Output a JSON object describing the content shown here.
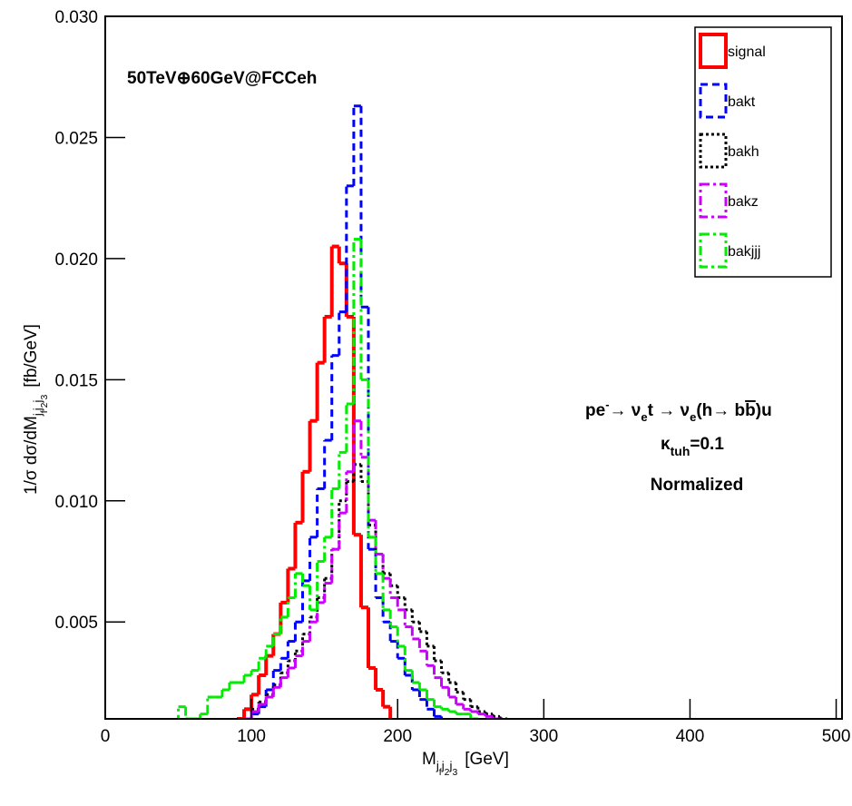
{
  "chart_data": {
    "type": "histogram",
    "annotations": {
      "beam": "50TeV⊕60GeV@FCCeh",
      "process": [
        "pe",
        "-",
        "→ ν",
        "e",
        "t → ν",
        "e",
        "(h→ b",
        "b",
        ")u"
      ],
      "coupling": [
        "κ",
        "tuh",
        "=0.1"
      ],
      "norm": "Normalized"
    },
    "x_label": [
      "M",
      "j",
      "f",
      "j",
      "2",
      "j",
      "3",
      "[GeV]"
    ],
    "y_label": [
      "1/σ dσ/dM",
      "j",
      "f",
      "j",
      "2",
      "j",
      "3",
      "[fb/GeV]"
    ],
    "bins": [
      0,
      50,
      55,
      60,
      65,
      70,
      75,
      80,
      85,
      90,
      95,
      100,
      105,
      110,
      115,
      120,
      125,
      130,
      135,
      140,
      145,
      150,
      155,
      160,
      165,
      170,
      175,
      180,
      185,
      190,
      195,
      200,
      205,
      210,
      215,
      220,
      225,
      230,
      235,
      240,
      245,
      250,
      255,
      260,
      265,
      270,
      275,
      280,
      285,
      290,
      295,
      300,
      500
    ],
    "series": [
      {
        "name": "signal",
        "color": "#ff0000",
        "line_style": "solid",
        "line_width": 4,
        "values": [
          0,
          0,
          0,
          0,
          0,
          0,
          0,
          0,
          0.0004,
          0.001,
          0.0014,
          0.002,
          0.0028,
          0.0036,
          0.0045,
          0.0058,
          0.0072,
          0.0091,
          0.0112,
          0.0133,
          0.0157,
          0.0176,
          0.0205,
          0.0198,
          0.0176,
          0.0086,
          0.0056,
          0.0031,
          0.0022,
          0.0015,
          0.0008,
          0,
          0,
          0,
          0,
          0,
          0,
          0,
          0,
          0,
          0,
          0,
          0,
          0,
          0,
          0,
          0,
          0,
          0,
          0,
          0,
          0
        ]
      },
      {
        "name": "bakt",
        "color": "#0000ff",
        "line_style": "dashed",
        "line_width": 3,
        "values": [
          0,
          0,
          0,
          0,
          0,
          0,
          0,
          0,
          0,
          0.0004,
          0.0008,
          0.0012,
          0.0015,
          0.0022,
          0.003,
          0.0035,
          0.0042,
          0.005,
          0.0067,
          0.0085,
          0.0105,
          0.0125,
          0.016,
          0.0178,
          0.023,
          0.0263,
          0.018,
          0.008,
          0.006,
          0.005,
          0.0042,
          0.0035,
          0.0028,
          0.0022,
          0.0018,
          0.0014,
          0.0011,
          0.0008,
          0.0006,
          0.0005,
          0.0004,
          0,
          0,
          0,
          0,
          0,
          0,
          0,
          0,
          0,
          0,
          0
        ]
      },
      {
        "name": "bakh",
        "color": "#000000",
        "line_style": "dotted",
        "line_width": 3,
        "values": [
          0,
          0,
          0,
          0,
          0,
          0,
          0,
          0,
          0,
          0.0005,
          0.001,
          0.0014,
          0.0017,
          0.002,
          0.0024,
          0.0029,
          0.0034,
          0.0038,
          0.0045,
          0.0052,
          0.006,
          0.0068,
          0.008,
          0.01,
          0.0108,
          0.0115,
          0.0108,
          0.009,
          0.0078,
          0.007,
          0.0065,
          0.006,
          0.0055,
          0.005,
          0.0046,
          0.004,
          0.0034,
          0.0029,
          0.0025,
          0.0021,
          0.0018,
          0.0015,
          0.0013,
          0.0012,
          0.0011,
          0.001,
          0.0009,
          0.0008,
          0.0006,
          0.0005,
          0.0004,
          0
        ]
      },
      {
        "name": "bakz",
        "color": "#cc00ff",
        "line_style": "dashdot",
        "line_width": 3,
        "values": [
          0,
          0,
          0,
          0,
          0,
          0,
          0,
          0,
          0,
          0.0005,
          0.001,
          0.0013,
          0.0016,
          0.0019,
          0.0023,
          0.0027,
          0.0031,
          0.0036,
          0.0042,
          0.005,
          0.0058,
          0.0066,
          0.008,
          0.0095,
          0.0112,
          0.0133,
          0.0118,
          0.0092,
          0.0078,
          0.0068,
          0.006,
          0.0055,
          0.0048,
          0.0043,
          0.0038,
          0.0032,
          0.0027,
          0.0023,
          0.0019,
          0.0016,
          0.0014,
          0.0013,
          0.0012,
          0.0011,
          0.001,
          0.0009,
          0.0008,
          0.0007,
          0.0006,
          0.0005,
          0.0004,
          0
        ]
      },
      {
        "name": "bakjjj",
        "color": "#00ee00",
        "line_style": "dashdot",
        "line_width": 3,
        "values": [
          0,
          0.0015,
          0.001,
          0.001,
          0.0012,
          0.0019,
          0.0019,
          0.0022,
          0.0025,
          0.0025,
          0.0028,
          0.003,
          0.0035,
          0.004,
          0.0045,
          0.0052,
          0.006,
          0.007,
          0.0065,
          0.0055,
          0.0075,
          0.0085,
          0.0105,
          0.012,
          0.014,
          0.0208,
          0.015,
          0.0085,
          0.007,
          0.0055,
          0.0048,
          0.004,
          0.003,
          0.0025,
          0.0022,
          0.0018,
          0.0015,
          0.0014,
          0.0013,
          0.0012,
          0.0012,
          0.001,
          0.0006,
          0.0005,
          0.0004,
          0,
          0,
          0,
          0,
          0,
          0,
          0
        ]
      }
    ],
    "xlim": [
      0,
      504
    ],
    "ylim": [
      0.001,
      0.03
    ],
    "xticks": [
      0,
      100,
      200,
      300,
      400,
      500
    ],
    "yticks": [
      0.005,
      {
        "value": 0.01,
        "label": "0.010"
      },
      0.015,
      {
        "value": 0.02,
        "label": "0.020"
      },
      0.025,
      {
        "value": 0.03,
        "label": "0.030"
      }
    ],
    "legend": "upper right"
  }
}
